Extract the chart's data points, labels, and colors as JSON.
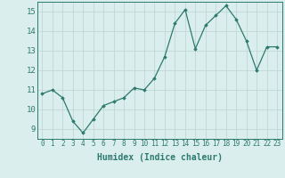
{
  "x": [
    0,
    1,
    2,
    3,
    4,
    5,
    6,
    7,
    8,
    9,
    10,
    11,
    12,
    13,
    14,
    15,
    16,
    17,
    18,
    19,
    20,
    21,
    22,
    23
  ],
  "y": [
    10.8,
    11.0,
    10.6,
    9.4,
    8.8,
    9.5,
    10.2,
    10.4,
    10.6,
    11.1,
    11.0,
    11.6,
    12.7,
    14.4,
    15.1,
    13.1,
    14.3,
    14.8,
    15.3,
    14.6,
    13.5,
    12.0,
    13.2,
    13.2
  ],
  "xlabel": "Humidex (Indice chaleur)",
  "ylim": [
    8.5,
    15.5
  ],
  "xlim": [
    -0.5,
    23.5
  ],
  "yticks": [
    9,
    10,
    11,
    12,
    13,
    14,
    15
  ],
  "xticks": [
    0,
    1,
    2,
    3,
    4,
    5,
    6,
    7,
    8,
    9,
    10,
    11,
    12,
    13,
    14,
    15,
    16,
    17,
    18,
    19,
    20,
    21,
    22,
    23
  ],
  "line_color": "#2d7a6e",
  "marker": "D",
  "marker_size": 1.8,
  "bg_color": "#daeeed",
  "grid_color_major": "#c0d8d5",
  "grid_color_minor": "#e0f0ee",
  "axis_color": "#2d7a6e",
  "xlabel_fontsize": 7.0,
  "tick_fontsize": 5.5,
  "ytick_fontsize": 6.5
}
